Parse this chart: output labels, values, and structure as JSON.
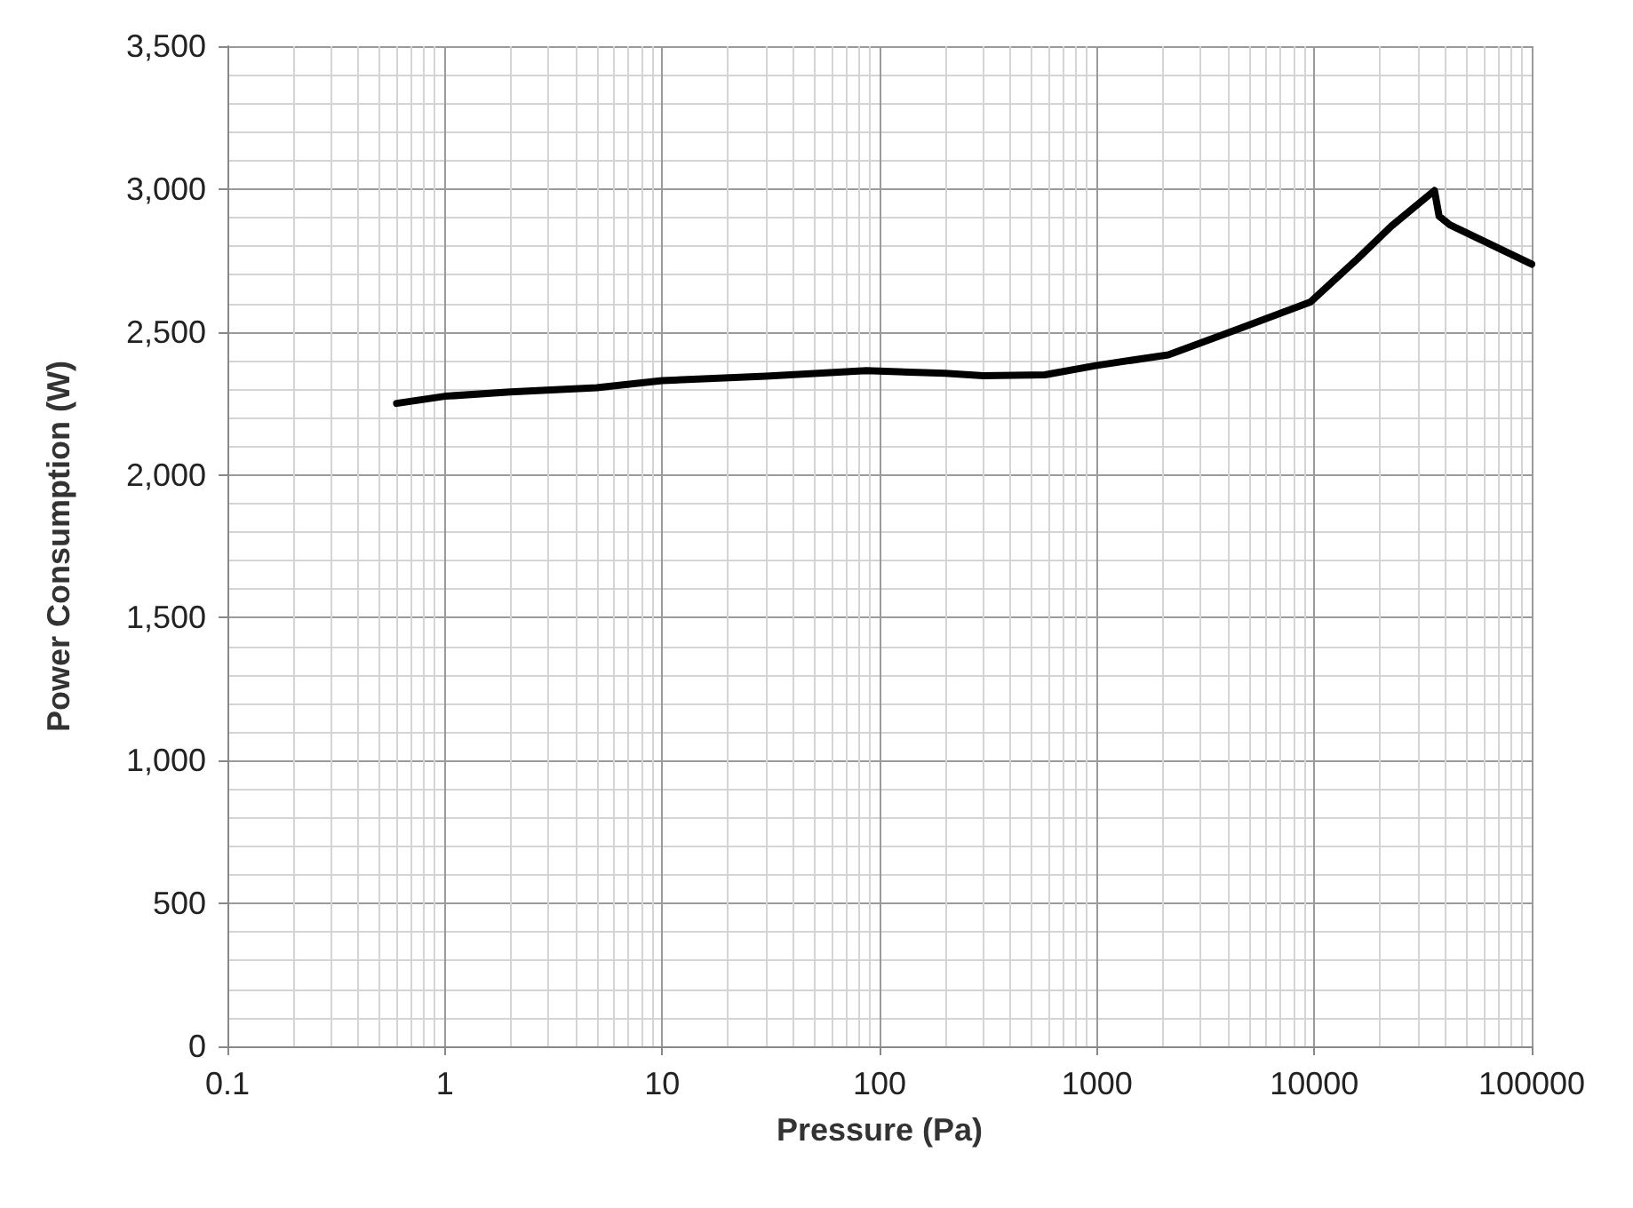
{
  "chart_data": {
    "type": "line",
    "xlabel": "Pressure (Pa)",
    "ylabel": "Power Consumption (W)",
    "x": [
      0.6,
      1,
      2,
      5,
      10,
      30,
      87,
      200,
      300,
      575,
      1000,
      2130,
      4460,
      9600,
      15500,
      22600,
      35700,
      37500,
      42000,
      100000
    ],
    "series": [
      {
        "color": "#000000",
        "values": [
          2250,
          2275,
          2290,
          2305,
          2330,
          2345,
          2365,
          2355,
          2347,
          2350,
          2383,
          2420,
          2510,
          2605,
          2750,
          2870,
          2995,
          2905,
          2875,
          2737
        ]
      }
    ],
    "xlim": [
      0.1,
      100000
    ],
    "xticks": [
      0.1,
      1,
      10,
      100,
      1000,
      10000,
      100000
    ],
    "ylim": [
      0,
      3500
    ],
    "yticks": [
      0,
      500,
      {
        "value": 1000,
        "label": "1,000"
      },
      {
        "value": 1500,
        "label": "1,500"
      },
      {
        "value": 2000,
        "label": "2,000"
      },
      {
        "value": 2500,
        "label": "2,500"
      },
      {
        "value": 3000,
        "label": "3,000"
      },
      {
        "value": 3500,
        "label": "3,500"
      }
    ],
    "log": "x",
    "grid": true,
    "marker": "none",
    "line_style": "solid"
  }
}
